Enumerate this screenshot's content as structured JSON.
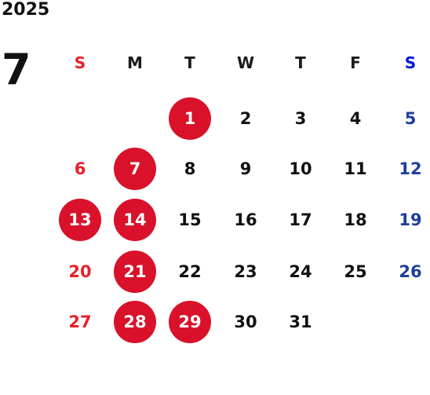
{
  "calendar": {
    "year": "2025",
    "month": "7",
    "weekdays": [
      "S",
      "M",
      "T",
      "W",
      "T",
      "F",
      "S"
    ],
    "weeks": [
      [
        null,
        null,
        {
          "day": "1",
          "highlight": true
        },
        {
          "day": "2"
        },
        {
          "day": "3"
        },
        {
          "day": "4"
        },
        {
          "day": "5"
        }
      ],
      [
        {
          "day": "6"
        },
        {
          "day": "7",
          "highlight": true
        },
        {
          "day": "8"
        },
        {
          "day": "9"
        },
        {
          "day": "10"
        },
        {
          "day": "11"
        },
        {
          "day": "12"
        }
      ],
      [
        {
          "day": "13",
          "highlight": true
        },
        {
          "day": "14",
          "highlight": true
        },
        {
          "day": "15"
        },
        {
          "day": "16"
        },
        {
          "day": "17"
        },
        {
          "day": "18"
        },
        {
          "day": "19"
        }
      ],
      [
        {
          "day": "20"
        },
        {
          "day": "21",
          "highlight": true
        },
        {
          "day": "22"
        },
        {
          "day": "23"
        },
        {
          "day": "24"
        },
        {
          "day": "25"
        },
        {
          "day": "26"
        }
      ],
      [
        {
          "day": "27"
        },
        {
          "day": "28",
          "highlight": true
        },
        {
          "day": "29",
          "highlight": true
        },
        {
          "day": "30"
        },
        {
          "day": "31"
        },
        null,
        null
      ]
    ],
    "colors": {
      "sunday": "#e8202a",
      "saturday": "#1e3f9c",
      "highlight": "#d9112a"
    }
  }
}
